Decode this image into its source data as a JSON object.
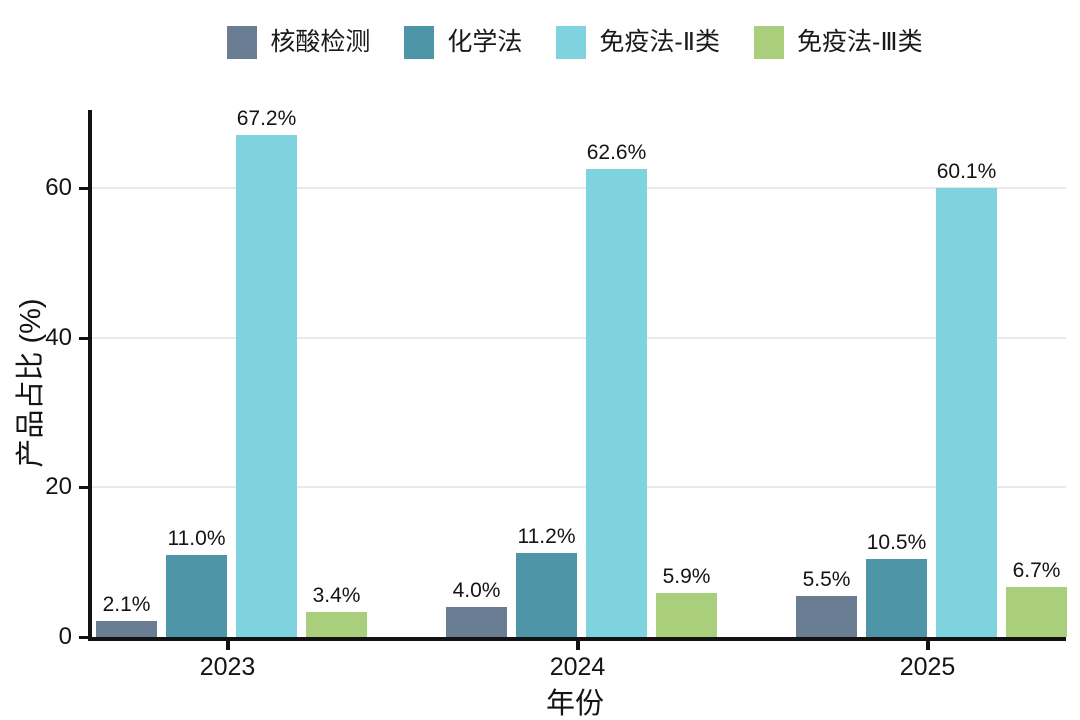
{
  "chart_data": {
    "type": "bar",
    "title": "",
    "xlabel": "年份",
    "ylabel": "产品占比 (%)",
    "categories": [
      "2023",
      "2024",
      "2025"
    ],
    "series": [
      {
        "name": "核酸检测",
        "color": "#6b7d93",
        "values": [
          2.1,
          4.0,
          5.5
        ],
        "labels": [
          "2.1%",
          "4.0%",
          "5.5%"
        ]
      },
      {
        "name": "化学法",
        "color": "#4f95a8",
        "values": [
          11.0,
          11.2,
          10.5
        ],
        "labels": [
          "11.0%",
          "11.2%",
          "10.5%"
        ]
      },
      {
        "name": "免疫法-Ⅱ类",
        "color": "#7ed3df",
        "values": [
          67.2,
          62.6,
          60.1
        ],
        "labels": [
          "67.2%",
          "62.6%",
          "60.1%"
        ]
      },
      {
        "name": "免疫法-Ⅲ类",
        "color": "#a9cf7c",
        "values": [
          3.4,
          5.9,
          6.7
        ],
        "labels": [
          "3.4%",
          "5.9%",
          "6.7%"
        ]
      }
    ],
    "yticks": [
      0,
      20,
      40,
      60
    ],
    "ytick_labels": [
      "0",
      "20",
      "40",
      "60"
    ],
    "ylim": [
      0,
      70.5
    ],
    "grid": "horizontal",
    "legend_position": "top",
    "background": "#ffffff",
    "axis_color": "#121212",
    "gridline_color": "#e9e9e9"
  }
}
